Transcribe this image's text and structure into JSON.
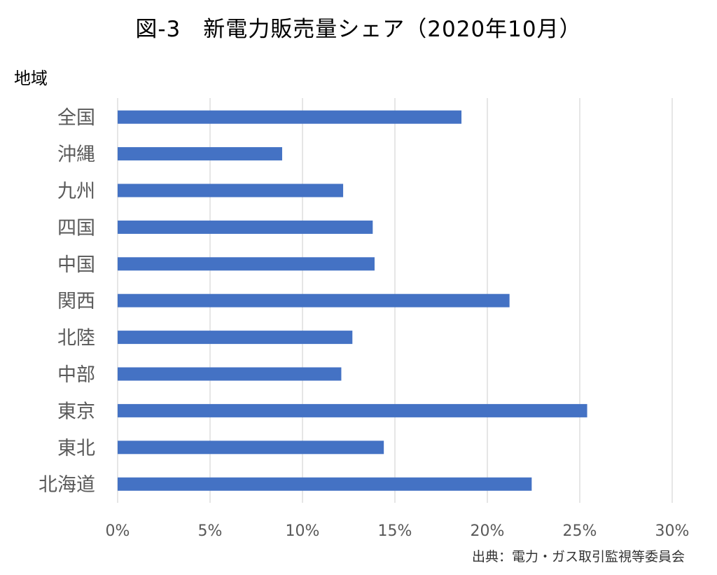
{
  "title": "図-3　新電力販売量シェア（2020年10月）",
  "axis_label": "地域",
  "source": "出典：電力・ガス取引監視等委員会",
  "colors": {
    "bar": "#4472c4",
    "grid": "#d9d9d9",
    "text": "#595959"
  },
  "chart_data": {
    "type": "bar",
    "orientation": "horizontal",
    "title": "図-3　新電力販売量シェア（2020年10月）",
    "ylabel": "地域",
    "categories": [
      "全国",
      "沖縄",
      "九州",
      "四国",
      "中国",
      "関西",
      "北陸",
      "中部",
      "東京",
      "東北",
      "北海道"
    ],
    "values": [
      18.6,
      8.9,
      12.2,
      13.8,
      13.9,
      21.2,
      12.7,
      12.1,
      25.4,
      14.4,
      22.4
    ],
    "unit": "%",
    "xlim": [
      0,
      30
    ],
    "xticks": [
      "0%",
      "5%",
      "10%",
      "15%",
      "20%",
      "25%",
      "30%"
    ],
    "xtick_values": [
      0,
      5,
      10,
      15,
      20,
      25,
      30
    ],
    "grid": true,
    "legend": "none"
  }
}
